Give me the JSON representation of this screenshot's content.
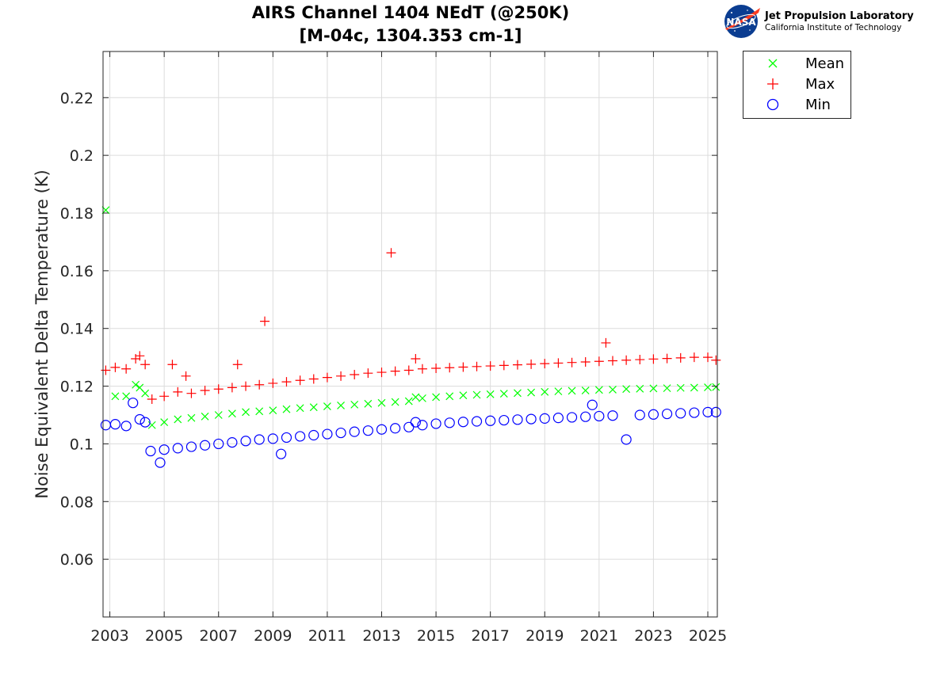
{
  "chart_data": {
    "type": "scatter",
    "title": "AIRS Channel 1404 NEdT (@250K)",
    "subtitle": "[M-04c, 1304.353 cm-1]",
    "xlabel": "",
    "ylabel": "Noise Equivalent Delta Temperature (K)",
    "xlim": [
      2002.75,
      2025.35
    ],
    "ylim": [
      0.04,
      0.236
    ],
    "xticks": [
      2003,
      2005,
      2007,
      2009,
      2011,
      2013,
      2015,
      2017,
      2019,
      2021,
      2023,
      2025
    ],
    "yticks": [
      0.06,
      0.08,
      0.1,
      0.12,
      0.14,
      0.16,
      0.18,
      0.2,
      0.22
    ],
    "ytick_labels": [
      "0.06",
      "0.08",
      "0.1",
      "0.12",
      "0.14",
      "0.16",
      "0.18",
      "0.2",
      "0.22"
    ],
    "grid": true,
    "legend_position": "outside-top-right",
    "series": [
      {
        "name": "Mean",
        "marker": "x",
        "color": "#00ff00",
        "x": [
          2002.85,
          2003.2,
          2003.6,
          2003.95,
          2004.1,
          2004.3,
          2004.55,
          2005.0,
          2005.5,
          2006.0,
          2006.5,
          2007.0,
          2007.5,
          2008.0,
          2008.5,
          2009.0,
          2009.5,
          2010.0,
          2010.5,
          2011.0,
          2011.5,
          2012.0,
          2012.5,
          2013.0,
          2013.5,
          2014.0,
          2014.25,
          2014.5,
          2015.0,
          2015.5,
          2016.0,
          2016.5,
          2017.0,
          2017.5,
          2018.0,
          2018.5,
          2019.0,
          2019.5,
          2020.0,
          2020.5,
          2021.0,
          2021.5,
          2022.0,
          2022.5,
          2023.0,
          2023.5,
          2024.0,
          2024.5,
          2025.0,
          2025.3
        ],
        "y": [
          0.181,
          0.1165,
          0.1165,
          0.1205,
          0.1195,
          0.1175,
          0.1065,
          0.1075,
          0.1085,
          0.109,
          0.1095,
          0.11,
          0.1105,
          0.111,
          0.1113,
          0.1116,
          0.112,
          0.1124,
          0.1127,
          0.113,
          0.1133,
          0.1136,
          0.1139,
          0.1142,
          0.1145,
          0.1148,
          0.1162,
          0.1158,
          0.1162,
          0.1165,
          0.1168,
          0.117,
          0.1172,
          0.1174,
          0.1176,
          0.1178,
          0.118,
          0.1182,
          0.1184,
          0.1185,
          0.1187,
          0.1188,
          0.119,
          0.1191,
          0.1192,
          0.1193,
          0.1194,
          0.1195,
          0.1196,
          0.1197
        ]
      },
      {
        "name": "Max",
        "marker": "+",
        "color": "#ff0000",
        "x": [
          2002.85,
          2003.2,
          2003.6,
          2003.95,
          2004.1,
          2004.3,
          2004.55,
          2005.0,
          2005.3,
          2005.5,
          2005.8,
          2006.0,
          2006.5,
          2007.0,
          2007.5,
          2007.7,
          2008.0,
          2008.5,
          2008.7,
          2009.0,
          2009.5,
          2010.0,
          2010.5,
          2011.0,
          2011.5,
          2012.0,
          2012.5,
          2013.0,
          2013.35,
          2013.5,
          2014.0,
          2014.25,
          2014.5,
          2015.0,
          2015.5,
          2016.0,
          2016.5,
          2017.0,
          2017.5,
          2018.0,
          2018.5,
          2019.0,
          2019.5,
          2020.0,
          2020.5,
          2021.0,
          2021.25,
          2021.5,
          2022.0,
          2022.5,
          2023.0,
          2023.5,
          2024.0,
          2024.5,
          2025.0,
          2025.3
        ],
        "y": [
          0.1255,
          0.1265,
          0.126,
          0.1295,
          0.1305,
          0.1275,
          0.1155,
          0.1165,
          0.1275,
          0.118,
          0.1235,
          0.1175,
          0.1185,
          0.119,
          0.1195,
          0.1275,
          0.12,
          0.1205,
          0.1425,
          0.121,
          0.1215,
          0.122,
          0.1225,
          0.123,
          0.1235,
          0.124,
          0.1245,
          0.1248,
          0.1662,
          0.1252,
          0.1255,
          0.1295,
          0.126,
          0.1262,
          0.1264,
          0.1266,
          0.1268,
          0.127,
          0.1272,
          0.1274,
          0.1276,
          0.1278,
          0.128,
          0.1282,
          0.1284,
          0.1286,
          0.135,
          0.1288,
          0.129,
          0.1292,
          0.1294,
          0.1296,
          0.1298,
          0.13,
          0.13,
          0.129
        ]
      },
      {
        "name": "Min",
        "marker": "o",
        "color": "#0000ff",
        "x": [
          2002.85,
          2003.2,
          2003.6,
          2003.85,
          2004.1,
          2004.3,
          2004.5,
          2004.85,
          2005.0,
          2005.5,
          2006.0,
          2006.5,
          2007.0,
          2007.5,
          2008.0,
          2008.5,
          2009.0,
          2009.3,
          2009.5,
          2010.0,
          2010.5,
          2011.0,
          2011.5,
          2012.0,
          2012.5,
          2013.0,
          2013.5,
          2014.0,
          2014.25,
          2014.5,
          2015.0,
          2015.5,
          2016.0,
          2016.5,
          2017.0,
          2017.5,
          2018.0,
          2018.5,
          2019.0,
          2019.5,
          2020.0,
          2020.5,
          2020.75,
          2021.0,
          2021.5,
          2022.0,
          2022.5,
          2023.0,
          2023.5,
          2024.0,
          2024.5,
          2025.0,
          2025.3
        ],
        "y": [
          0.1065,
          0.1068,
          0.1062,
          0.1142,
          0.1085,
          0.1075,
          0.0975,
          0.0935,
          0.098,
          0.0985,
          0.099,
          0.0995,
          0.1,
          0.1005,
          0.101,
          0.1015,
          0.1018,
          0.0965,
          0.1022,
          0.1026,
          0.103,
          0.1034,
          0.1038,
          0.1042,
          0.1046,
          0.105,
          0.1054,
          0.1058,
          0.1075,
          0.1065,
          0.107,
          0.1073,
          0.1076,
          0.1078,
          0.108,
          0.1082,
          0.1084,
          0.1086,
          0.1088,
          0.109,
          0.1092,
          0.1094,
          0.1135,
          0.1096,
          0.1098,
          0.1015,
          0.11,
          0.1102,
          0.1104,
          0.1106,
          0.1108,
          0.111,
          0.111
        ]
      }
    ]
  },
  "logo": {
    "nasa_text": "NASA",
    "lab_name": "Jet Propulsion Laboratory",
    "institute": "California Institute of Technology"
  },
  "colors": {
    "mean": "#00ff00",
    "max": "#ff0000",
    "min": "#0000ff",
    "grid": "#dcdcdc",
    "axis": "#262626",
    "nasa_blue": "#0b3d91",
    "nasa_red": "#fc3d21"
  }
}
